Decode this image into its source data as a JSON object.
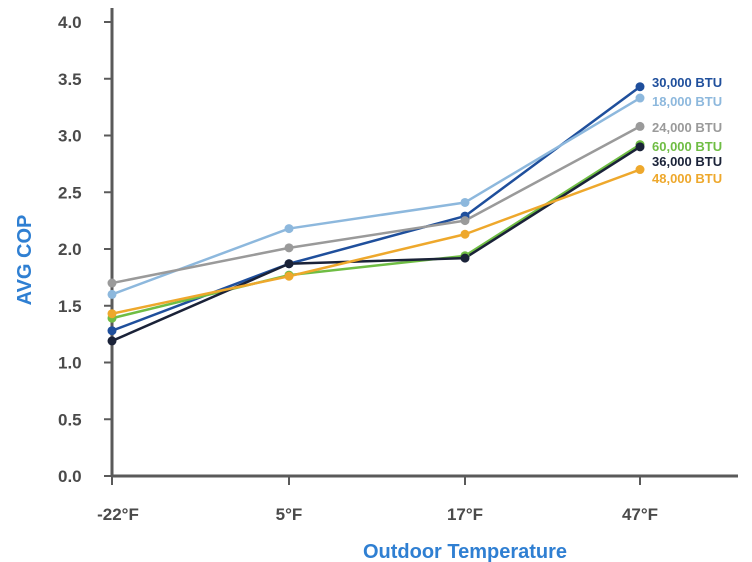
{
  "chart_data": {
    "type": "line",
    "title": "",
    "xlabel": "Outdoor Temperature",
    "ylabel": "AVG COP",
    "categories": [
      "-22°F",
      "5°F",
      "17°F",
      "47°F"
    ],
    "ylim": [
      0,
      4.0
    ],
    "yticks": [
      "0.0",
      "0.5",
      "1.0",
      "1.5",
      "2.0",
      "2.5",
      "3.0",
      "3.5",
      "4.0"
    ],
    "axis_title_color": "#2f7fd2",
    "grid": false,
    "legend": "inline-right",
    "series": [
      {
        "name": "30,000 BTU",
        "color": "#1f4f9c",
        "values": [
          1.28,
          1.87,
          2.29,
          3.43
        ]
      },
      {
        "name": "18,000 BTU",
        "color": "#8db8dd",
        "values": [
          1.6,
          2.18,
          2.41,
          3.33
        ]
      },
      {
        "name": "24,000 BTU",
        "color": "#9a9a9a",
        "values": [
          1.7,
          2.01,
          2.25,
          3.08
        ]
      },
      {
        "name": "60,000 BTU",
        "color": "#6fbd44",
        "values": [
          1.39,
          1.77,
          1.94,
          2.92
        ]
      },
      {
        "name": "36,000 BTU",
        "color": "#1a2238",
        "values": [
          1.19,
          1.87,
          1.92,
          2.9
        ]
      },
      {
        "name": "48,000 BTU",
        "color": "#eea82c",
        "values": [
          1.43,
          1.76,
          2.13,
          2.7
        ]
      }
    ]
  }
}
